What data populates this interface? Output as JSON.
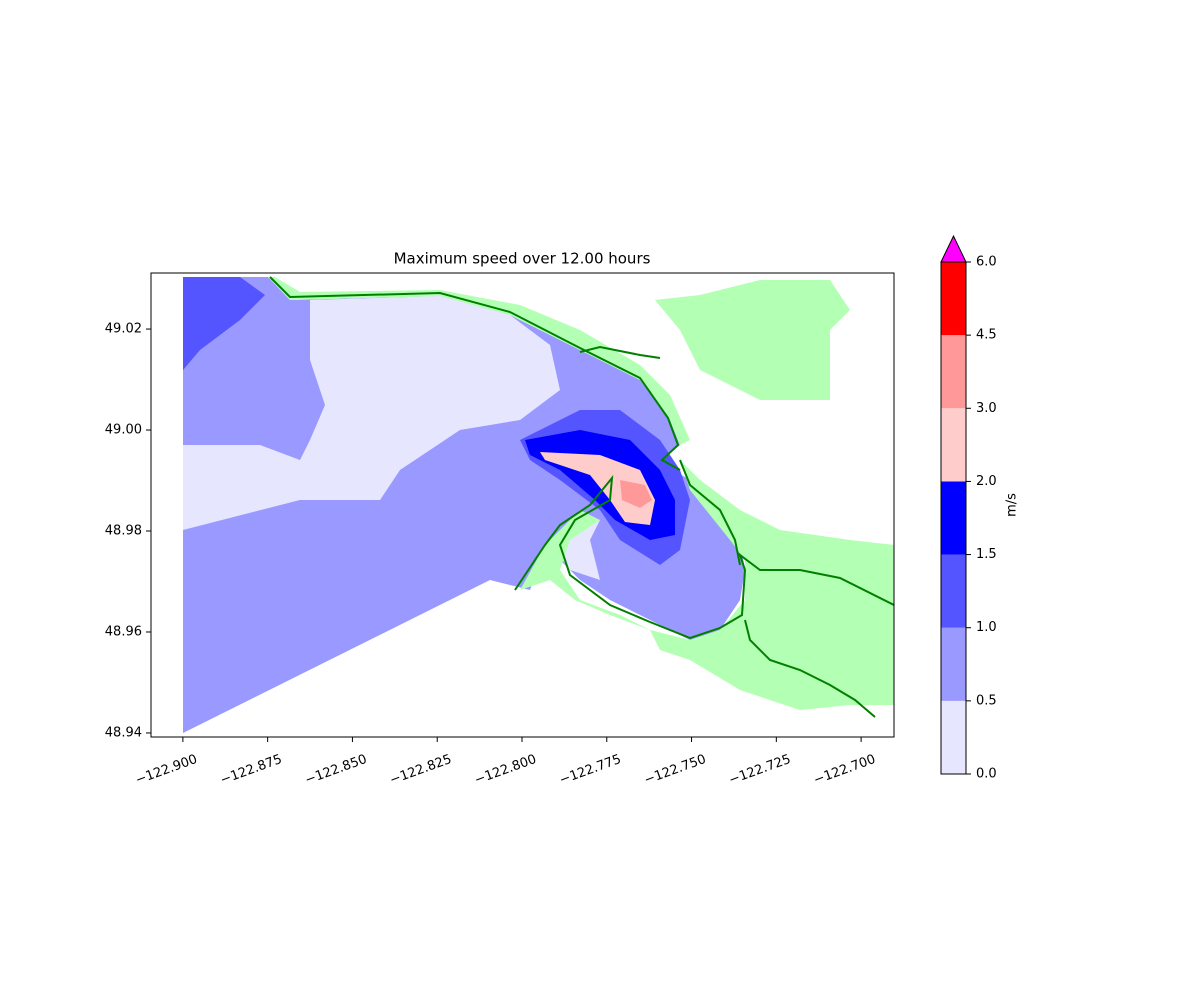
{
  "chart_data": {
    "type": "contourf",
    "title": "Maximum speed over 12.00 hours",
    "xlim": [
      -122.9094,
      -122.6903
    ],
    "ylim": [
      48.9392,
      49.0311
    ],
    "xticks": [
      {
        "value": -122.9,
        "label": "−122.900"
      },
      {
        "value": -122.875,
        "label": "−122.875"
      },
      {
        "value": -122.85,
        "label": "−122.850"
      },
      {
        "value": -122.825,
        "label": "−122.825"
      },
      {
        "value": -122.8,
        "label": "−122.800"
      },
      {
        "value": -122.775,
        "label": "−122.775"
      },
      {
        "value": -122.75,
        "label": "−122.750"
      },
      {
        "value": -122.725,
        "label": "−122.725"
      },
      {
        "value": -122.7,
        "label": "−122.700"
      }
    ],
    "yticks": [
      48.94,
      48.96,
      48.98,
      {
        "value": 49.0,
        "label": "49.00"
      },
      49.02
    ],
    "colorbar": {
      "label": "m/s",
      "levels": [
        {
          "value": 0,
          "label": "0.0"
        },
        0.5,
        {
          "value": 1,
          "label": "1.0"
        },
        1.5,
        {
          "value": 2,
          "label": "2.0"
        },
        {
          "value": 3,
          "label": "3.0"
        },
        4.5,
        {
          "value": 6,
          "label": "6.0"
        }
      ],
      "colors": [
        "#e6e6ff",
        "#9999ff",
        "#5555ff",
        "#0000ff",
        "#ffcccc",
        "#ff9999",
        "#ff0000"
      ],
      "extend_color": "#ff00ff"
    },
    "land_color": "#b3ffb3",
    "coast_color": "#008000"
  }
}
